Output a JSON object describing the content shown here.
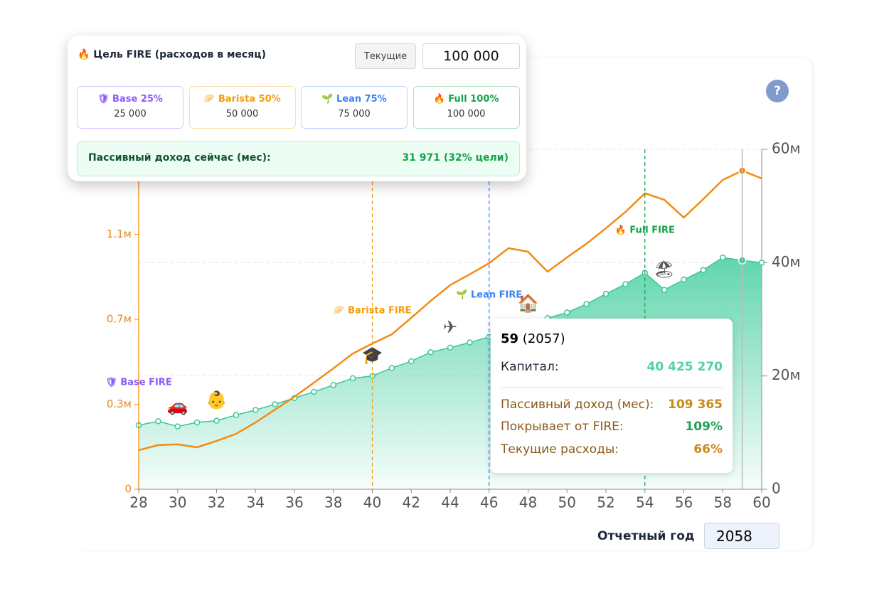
{
  "panel": {
    "title": "🔥 Цель FIRE (расходов в месяц)",
    "button": "Текущие",
    "input": "100 000",
    "cards": [
      {
        "label": "🛡 Base 25%",
        "value": "25 000",
        "color": "#8b5cf6"
      },
      {
        "label": "🥟 Barista 50%",
        "value": "50 000",
        "color": "#f59e0b"
      },
      {
        "label": "🌱 Lean 75%",
        "value": "75 000",
        "color": "#3b82f6"
      },
      {
        "label": "🔥 Full 100%",
        "value": "100 000",
        "color": "#16a34a"
      }
    ],
    "passive_label": "Пассивный доход сейчас (мес):",
    "passive_value": "31 971 (32% цели)"
  },
  "help": "?",
  "report": {
    "label": "Отчетный год",
    "input": "2058"
  },
  "tooltip": {
    "age": "59",
    "year": "(2057)",
    "rows": [
      {
        "label": "Капитал:",
        "value": "40 425 270"
      },
      {
        "label": "Пассивный доход (мес):",
        "value": "109 365"
      },
      {
        "label": "Покрывает от FIRE:",
        "value": "109%"
      },
      {
        "label": "Текущие расходы:",
        "value": "66%"
      }
    ]
  },
  "chart_data": {
    "type": "line",
    "x": [
      28,
      29,
      30,
      31,
      32,
      33,
      34,
      35,
      36,
      37,
      38,
      39,
      40,
      41,
      42,
      43,
      44,
      45,
      46,
      47,
      48,
      49,
      50,
      51,
      52,
      53,
      54,
      55,
      56,
      57,
      58,
      59,
      60
    ],
    "xlim": [
      28,
      60
    ],
    "xticks": [
      28,
      30,
      32,
      34,
      36,
      38,
      40,
      42,
      44,
      46,
      48,
      50,
      52,
      54,
      56,
      58,
      60
    ],
    "ylim": [
      0,
      1.4
    ],
    "yticks": [
      0,
      {
        "value": 0.35,
        "label": "0.3м"
      },
      {
        "value": 0.7,
        "label": "0.7м"
      },
      {
        "value": 1.05,
        "label": "1.1м"
      }
    ],
    "y2lim": [
      0,
      60
    ],
    "y2ticks": [
      0,
      {
        "value": 20,
        "label": "20м"
      },
      {
        "value": 40,
        "label": "40м"
      },
      {
        "value": 60,
        "label": "60м"
      }
    ],
    "series": [
      {
        "color": "#3cc795",
        "axis": "y2",
        "values": [
          11.3,
          12.0,
          11.1,
          11.8,
          12.1,
          13.1,
          14.0,
          15.0,
          16.1,
          17.2,
          18.4,
          19.6,
          20.0,
          21.4,
          22.6,
          24.2,
          25.0,
          25.9,
          26.9,
          28.1,
          29.2,
          30.2,
          31.2,
          32.7,
          34.5,
          36.2,
          38.2,
          35.2,
          37.0,
          38.7,
          40.9,
          40.4,
          40.0
        ]
      },
      {
        "color": "#f28c13",
        "values": [
          0.161,
          0.182,
          0.185,
          0.173,
          0.199,
          0.228,
          0.275,
          0.328,
          0.381,
          0.439,
          0.498,
          0.559,
          0.6,
          0.638,
          0.706,
          0.776,
          0.841,
          0.885,
          0.931,
          0.993,
          0.978,
          0.896,
          0.955,
          1.011,
          1.075,
          1.142,
          1.219,
          1.192,
          1.119,
          1.195,
          1.274,
          1.312,
          1.28
        ]
      }
    ],
    "milestones": [
      {
        "x": 28,
        "label": "🛡 Base FIRE",
        "color": "#8b5cf6",
        "line": "#f28c13"
      },
      {
        "x": 40,
        "label": "🥟 Barista FIRE",
        "color": "#f59e0b",
        "line": "#f59e0b"
      },
      {
        "x": 46,
        "label": "🌱 Lean FIRE",
        "color": "#3b82f6",
        "line": "#3b82f6"
      },
      {
        "x": 54,
        "label": "🔥 Full FIRE",
        "color": "#16a34a",
        "line": "#16a34a"
      }
    ],
    "events": [
      {
        "x": 30,
        "label": "🚗"
      },
      {
        "x": 32,
        "label": "👶"
      },
      {
        "x": 40,
        "label": "🎓"
      },
      {
        "x": 44,
        "label": "✈"
      },
      {
        "x": 48,
        "label": "🏠"
      },
      {
        "x": 55,
        "label": "🏖"
      }
    ],
    "highlight": 59,
    "grid": true
  }
}
